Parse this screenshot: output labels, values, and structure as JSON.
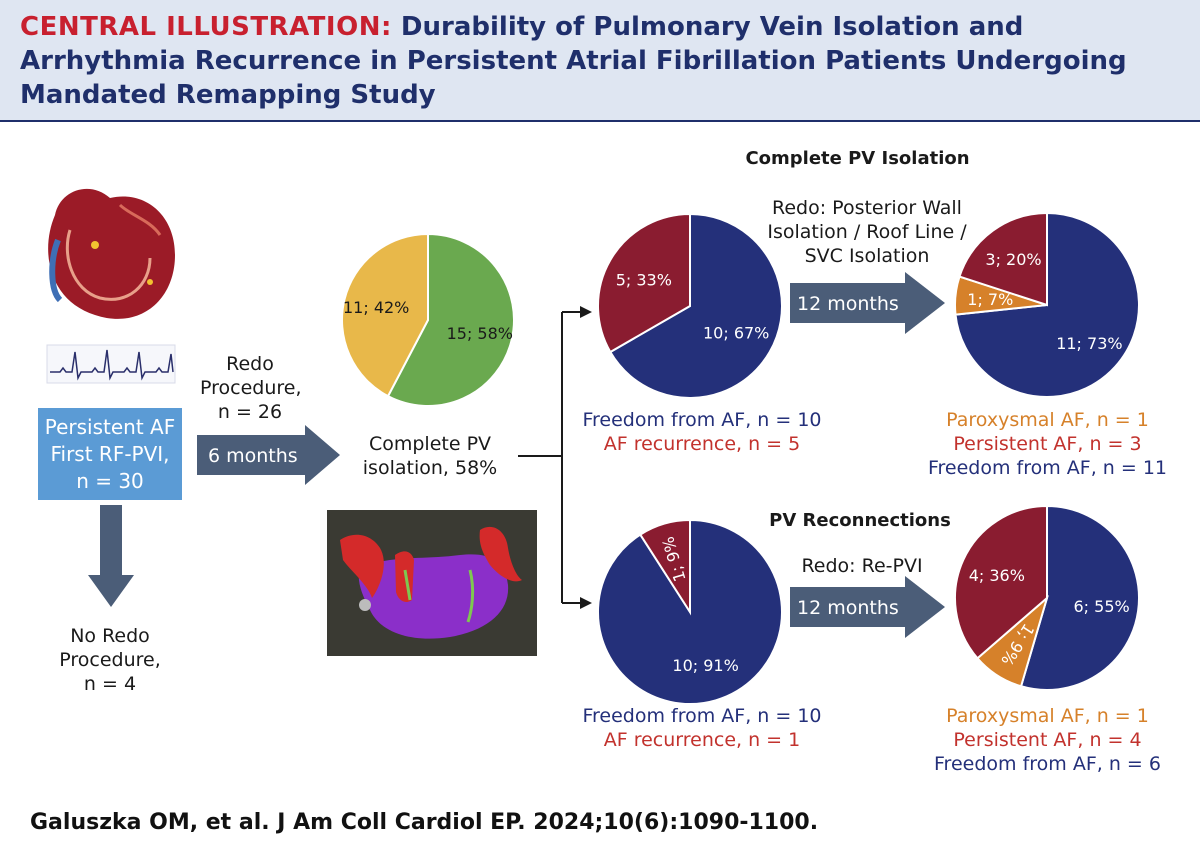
{
  "title": {
    "lead": "CENTRAL ILLUSTRATION:",
    "rest": "Durability of Pulmonary Vein Isolation and Arrhythmia Recurrence in Persistent Atrial Fibrillation Patients Undergoing Mandated Remapping Study"
  },
  "colors": {
    "navy": "#24307a",
    "maroon": "#8a1c30",
    "orange": "#d6812a",
    "green": "#6aa94f",
    "yellow": "#e8b84a",
    "arrow": "#4b5d78",
    "box": "#5b9bd5"
  },
  "start_box": {
    "line1": "Persistent AF",
    "line2": "First RF-PVI,",
    "line3": "n = 30"
  },
  "no_redo": {
    "line1": "No Redo",
    "line2": "Procedure,",
    "line3": "n = 4"
  },
  "redo": {
    "line1": "Redo",
    "line2": "Procedure,",
    "line3": "n = 26"
  },
  "arrow_6m": "6 months",
  "arrow_12m_top": "12 months",
  "arrow_12m_bottom": "12 months",
  "complete_pv_caption": {
    "line1": "Complete PV",
    "line2": "isolation, 58%"
  },
  "section_top": "Complete PV Isolation",
  "section_bottom": "PV Reconnections",
  "redo_top": {
    "line1": "Redo: Posterior Wall",
    "line2": "Isolation / Roof Line /",
    "line3": "SVC Isolation"
  },
  "redo_bottom": "Redo: Re-PVI",
  "legend_top_mid": {
    "free": "Freedom from AF, n = 10",
    "recur": "AF recurrence, n = 5"
  },
  "legend_top_right": {
    "parox": "Paroxysmal AF, n = 1",
    "pers": "Persistent AF, n = 3",
    "free": "Freedom from AF, n = 11"
  },
  "legend_bottom_mid": {
    "free": "Freedom from AF, n = 10",
    "recur": "AF recurrence, n = 1"
  },
  "legend_bottom_right": {
    "parox": "Paroxysmal AF, n = 1",
    "pers": "Persistent AF, n = 4",
    "free": "Freedom from AF, n = 6"
  },
  "citation": "Galuszka OM, et al. J Am Coll Cardiol EP. 2024;10(6):1090-1100.",
  "chart_data": [
    {
      "type": "pie",
      "slices": [
        {
          "value": 15,
          "label": "15; 58%",
          "color": "#6aa94f"
        },
        {
          "value": 11,
          "label": "11; 42%",
          "color": "#e8b84a"
        }
      ]
    },
    {
      "type": "pie",
      "slices": [
        {
          "value": 10,
          "label": "10; 67%",
          "color": "#24307a"
        },
        {
          "value": 5,
          "label": "5; 33%",
          "color": "#8a1c30"
        }
      ]
    },
    {
      "type": "pie",
      "slices": [
        {
          "value": 11,
          "label": "11; 73%",
          "color": "#24307a"
        },
        {
          "value": 1,
          "label": "1; 7%",
          "color": "#d6812a"
        },
        {
          "value": 3,
          "label": "3; 20%",
          "color": "#8a1c30"
        }
      ]
    },
    {
      "type": "pie",
      "slices": [
        {
          "value": 10,
          "label": "10; 91%",
          "color": "#24307a"
        },
        {
          "value": 1,
          "label": "1; 9%",
          "color": "#8a1c30"
        }
      ]
    },
    {
      "type": "pie",
      "slices": [
        {
          "value": 6,
          "label": "6; 55%",
          "color": "#24307a"
        },
        {
          "value": 1,
          "label": "1; 9%",
          "color": "#d6812a"
        },
        {
          "value": 4,
          "label": "4; 36%",
          "color": "#8a1c30"
        }
      ]
    }
  ]
}
